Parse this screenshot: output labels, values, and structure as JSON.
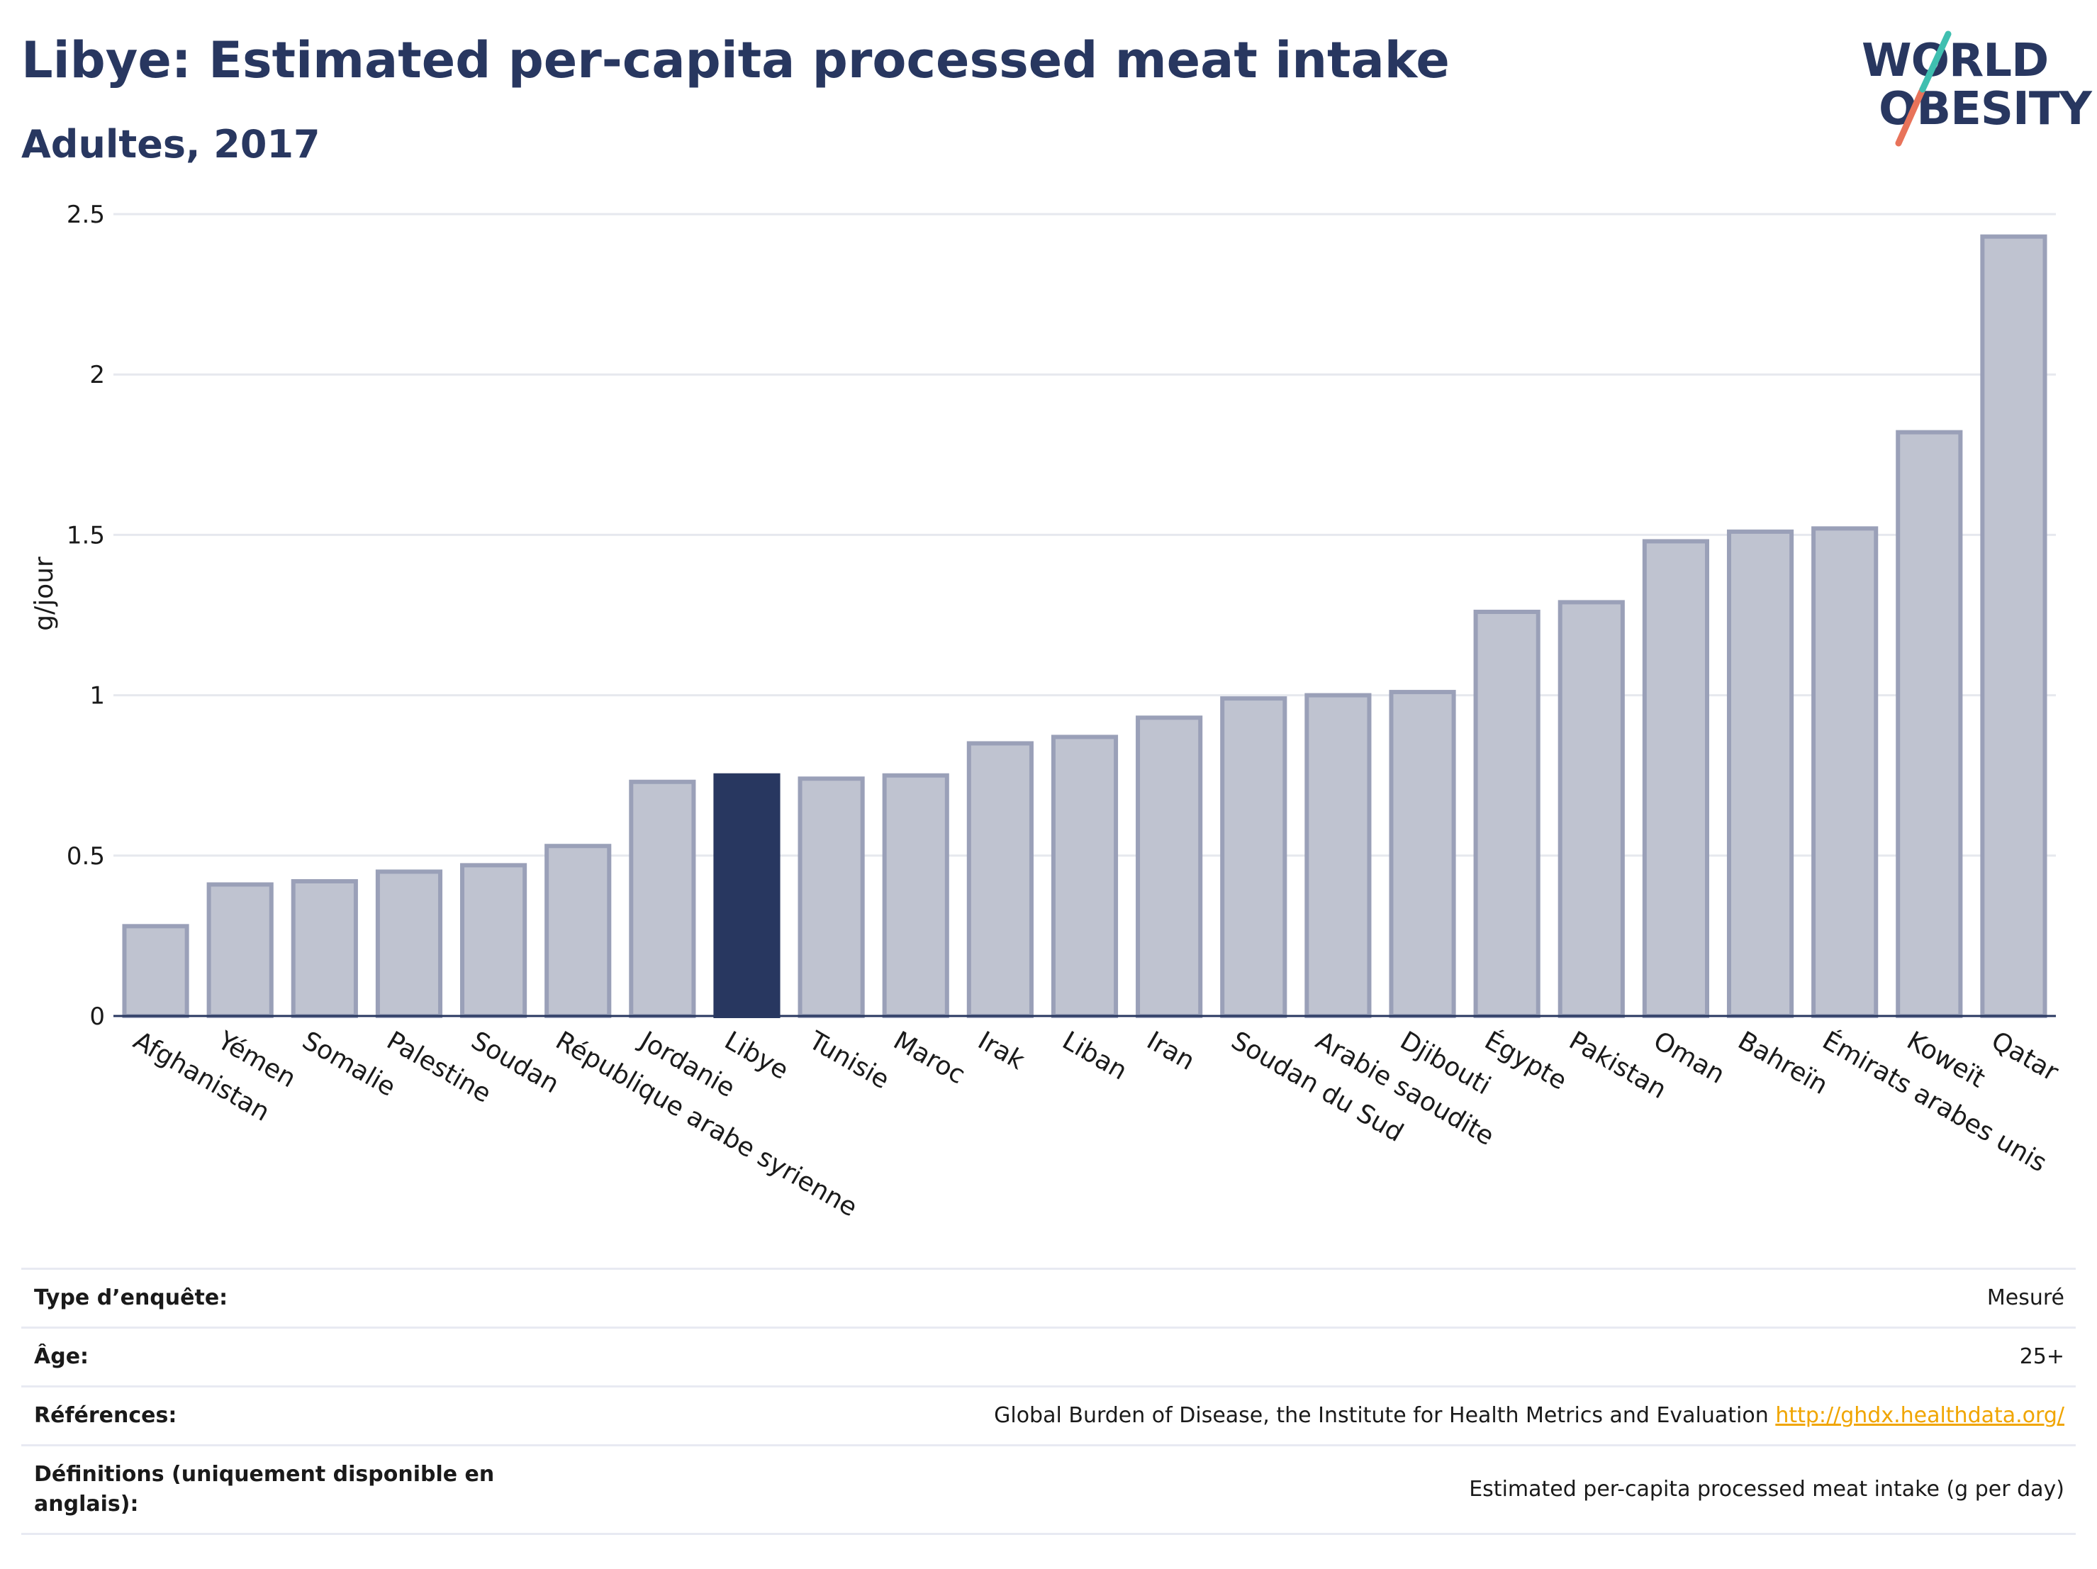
{
  "header": {
    "title": "Libye: Estimated per-capita processed meat intake",
    "subtitle": "Adultes, 2017",
    "logo_line1": "WORLD",
    "logo_line2": "OBESITY"
  },
  "chart_data": {
    "type": "bar",
    "title": "Libye: Estimated per-capita processed meat intake",
    "subtitle": "Adultes, 2017",
    "xlabel": "",
    "ylabel": "g/jour",
    "ylim": [
      0,
      2.5
    ],
    "yticks": [
      0,
      0.5,
      1,
      1.5,
      2,
      2.5
    ],
    "ytick_labels": [
      "0",
      "0.5",
      "1",
      "1.5",
      "2",
      "2.5"
    ],
    "grid": true,
    "highlight": "Libye",
    "colors": {
      "bar": "#bfc3d0",
      "bar_border": "#9aa0b8",
      "highlight": "#283760",
      "grid": "#e6e8ee",
      "axis": "#283760"
    },
    "categories": [
      "Afghanistan",
      "Yémen",
      "Somalie",
      "Palestine",
      "Soudan",
      "République arabe syrienne",
      "Jordanie",
      "Libye",
      "Tunisie",
      "Maroc",
      "Irak",
      "Liban",
      "Iran",
      "Soudan du Sud",
      "Arabie saoudite",
      "Djibouti",
      "Égypte",
      "Pakistan",
      "Oman",
      "Bahreïn",
      "Émirats arabes unis",
      "Koweït",
      "Qatar"
    ],
    "values": [
      0.28,
      0.41,
      0.42,
      0.45,
      0.47,
      0.53,
      0.73,
      0.75,
      0.74,
      0.75,
      0.85,
      0.87,
      0.93,
      0.99,
      1.0,
      1.01,
      1.26,
      1.29,
      1.48,
      1.51,
      1.52,
      1.82,
      2.43
    ]
  },
  "meta": [
    {
      "label": "Type d’enquête:",
      "value": "Mesuré",
      "link": ""
    },
    {
      "label": "Âge:",
      "value": "25+",
      "link": ""
    },
    {
      "label": "Références:",
      "value": "Global Burden of Disease, the Institute for Health Metrics and Evaluation",
      "link": "http://ghdx.healthdata.org/"
    },
    {
      "label": "Définitions (uniquement disponible en anglais):",
      "value": "Estimated per-capita processed meat intake (g per day)",
      "link": ""
    }
  ]
}
